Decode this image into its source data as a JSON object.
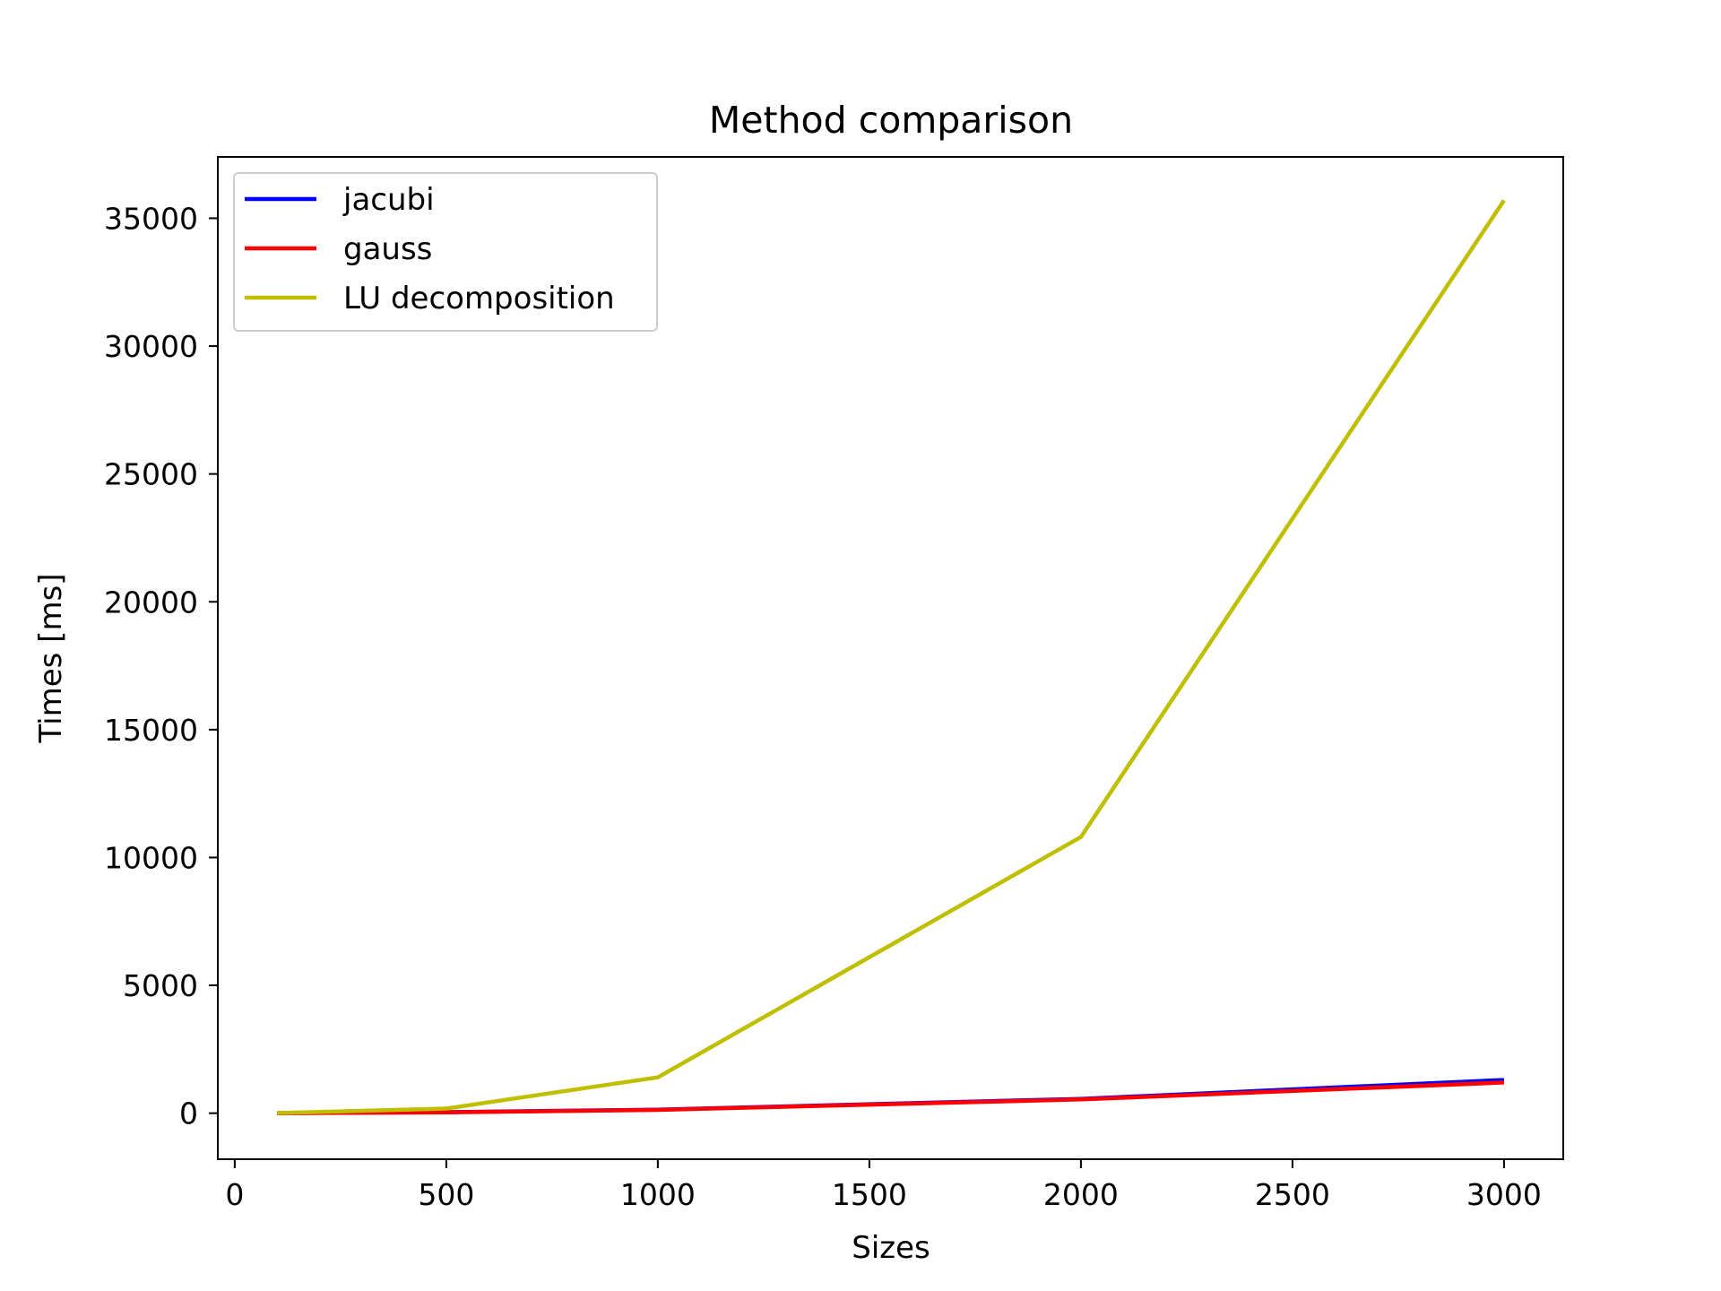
{
  "chart_data": {
    "type": "line",
    "title": "Method comparison",
    "xlabel": "Sizes",
    "ylabel": "Times [ms]",
    "xlim": [
      -40,
      3140
    ],
    "ylim": [
      -1800,
      37400
    ],
    "xticks": [
      0,
      500,
      1000,
      1500,
      2000,
      2500,
      3000
    ],
    "yticks": [
      0,
      5000,
      10000,
      15000,
      20000,
      25000,
      30000,
      35000
    ],
    "xtick_labels": [
      "0",
      "500",
      "1000",
      "1500",
      "2000",
      "2500",
      "3000"
    ],
    "ytick_labels": [
      "0",
      "5000",
      "10000",
      "15000",
      "20000",
      "25000",
      "30000",
      "35000"
    ],
    "grid": false,
    "legend_position": "upper-left",
    "x": [
      100,
      500,
      1000,
      2000,
      3000
    ],
    "series": [
      {
        "name": "jacubi",
        "color": "#0000ff",
        "values": [
          2,
          40,
          140,
          560,
          1300
        ]
      },
      {
        "name": "gauss",
        "color": "#ff0000",
        "values": [
          2,
          35,
          130,
          540,
          1200
        ]
      },
      {
        "name": "LU decomposition",
        "color": "#bfbf00",
        "values": [
          5,
          180,
          1400,
          10800,
          35700
        ]
      }
    ]
  }
}
